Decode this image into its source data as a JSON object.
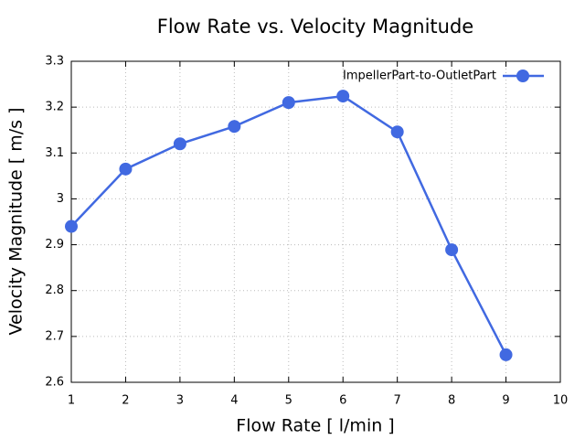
{
  "chart_data": {
    "type": "line",
    "title": "Flow Rate vs. Velocity Magnitude",
    "x_label": "Flow Rate [ l/min ]",
    "y_label": "Velocity Magnitude [ m/s ]",
    "x": [
      1,
      2,
      3,
      4,
      5,
      6,
      7,
      8,
      9
    ],
    "series": [
      {
        "name": "ImpellerPart-to-OutletPart",
        "color": "#4169e1",
        "values": [
          2.94,
          3.065,
          3.12,
          3.158,
          3.21,
          3.224,
          3.146,
          2.889,
          2.66
        ]
      }
    ],
    "xlim": [
      1,
      10
    ],
    "xticks": [
      1,
      2,
      3,
      4,
      5,
      6,
      7,
      8,
      9,
      10
    ],
    "ylim": [
      2.6,
      3.3
    ],
    "yticks": [
      2.6,
      2.7,
      2.8,
      2.9,
      3,
      3.1,
      3.2,
      3.3
    ],
    "grid": true,
    "legend": "top-right"
  }
}
